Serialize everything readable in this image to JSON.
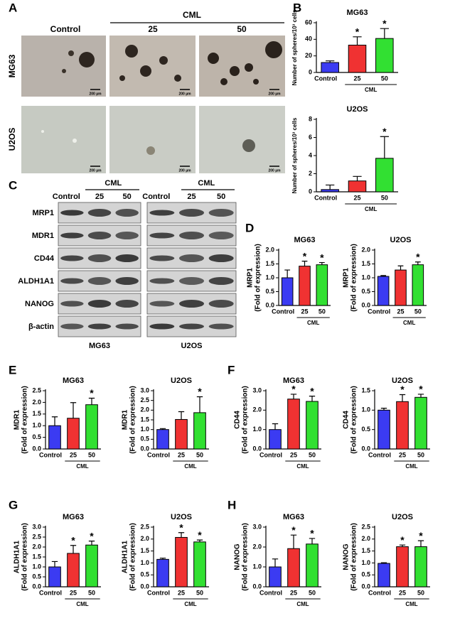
{
  "panel_labels": [
    "A",
    "B",
    "C",
    "D",
    "E",
    "F",
    "G",
    "H"
  ],
  "panel_a": {
    "group_label": "CML",
    "columns": [
      "Control",
      "25",
      "50"
    ],
    "rows": [
      "MG63",
      "U2OS"
    ],
    "scale_bar": "200 µm"
  },
  "panel_c": {
    "group_label": "CML",
    "columns": [
      "Control",
      "25",
      "50"
    ],
    "rows": [
      "MRP1",
      "MDR1",
      "CD44",
      "ALDH1A1",
      "NANOG",
      "β-actin"
    ],
    "cell_lines": [
      "MG63",
      "U2OS"
    ]
  },
  "chart_data": [
    {
      "type": "bar",
      "title": "MG63",
      "ylabel": "Number of spheres/10³ cells",
      "categories": [
        "Control",
        "25",
        "50"
      ],
      "group_label": "CML",
      "values": [
        12,
        33,
        41
      ],
      "errors": [
        2,
        10,
        12
      ],
      "significance": [
        null,
        "*",
        "*"
      ],
      "colors": [
        "#3b3bf2",
        "#f03232",
        "#32e032"
      ],
      "ylim": [
        0,
        60
      ],
      "yticks": [
        0,
        20,
        40,
        60
      ]
    },
    {
      "type": "bar",
      "title": "U2OS",
      "ylabel": "Number of spheres/10³ cells",
      "categories": [
        "Control",
        "25",
        "50"
      ],
      "group_label": "CML",
      "values": [
        0.25,
        1.2,
        3.7
      ],
      "errors": [
        0.5,
        0.5,
        2.4
      ],
      "significance": [
        null,
        null,
        "*"
      ],
      "colors": [
        "#3b3bf2",
        "#f03232",
        "#32e032"
      ],
      "ylim": [
        0,
        8
      ],
      "yticks": [
        0,
        2,
        4,
        6,
        8
      ]
    },
    {
      "type": "bar",
      "title": "MG63",
      "ylabel": "MRP1",
      "ylabel_2": "(Fold of expression)",
      "categories": [
        "Control",
        "25",
        "50"
      ],
      "group_label": "CML",
      "values": [
        1.0,
        1.42,
        1.47
      ],
      "errors": [
        0.28,
        0.18,
        0.08
      ],
      "significance": [
        null,
        "*",
        "*"
      ],
      "colors": [
        "#3b3bf2",
        "#f03232",
        "#32e032"
      ],
      "ylim": [
        0,
        2
      ],
      "yticks": [
        {
          "value": 0,
          "label": "0.0"
        },
        0.5,
        {
          "value": 1,
          "label": "1.0"
        },
        1.5,
        {
          "value": 2,
          "label": "2.0"
        }
      ]
    },
    {
      "type": "bar",
      "title": "U2OS",
      "ylabel": "MRP1",
      "ylabel_2": "(Fold of expression)",
      "categories": [
        "Control",
        "25",
        "50"
      ],
      "group_label": "CML",
      "values": [
        1.05,
        1.28,
        1.47
      ],
      "errors": [
        0.03,
        0.15,
        0.1
      ],
      "significance": [
        null,
        null,
        "*"
      ],
      "colors": [
        "#3b3bf2",
        "#f03232",
        "#32e032"
      ],
      "ylim": [
        0,
        2
      ],
      "yticks": [
        {
          "value": 0,
          "label": "0.0"
        },
        0.5,
        {
          "value": 1,
          "label": "1.0"
        },
        1.5,
        {
          "value": 2,
          "label": "2.0"
        }
      ]
    },
    {
      "type": "bar",
      "title": "MG63",
      "ylabel": "MDR1",
      "ylabel_2": "(Fold of expression)",
      "categories": [
        "Control",
        "25",
        "50"
      ],
      "group_label": "CML",
      "values": [
        1.0,
        1.32,
        1.9
      ],
      "errors": [
        0.38,
        0.67,
        0.28
      ],
      "significance": [
        null,
        null,
        "*"
      ],
      "colors": [
        "#3b3bf2",
        "#f03232",
        "#32e032"
      ],
      "ylim": [
        0,
        2.5
      ],
      "yticks": [
        {
          "value": 0,
          "label": "0.0"
        },
        0.5,
        {
          "value": 1,
          "label": "1.0"
        },
        1.5,
        {
          "value": 2,
          "label": "2.0"
        },
        2.5
      ]
    },
    {
      "type": "bar",
      "title": "U2OS",
      "ylabel": "MDR1",
      "ylabel_2": "(Fold of expression)",
      "categories": [
        "Control",
        "25",
        "50"
      ],
      "group_label": "CML",
      "values": [
        1.0,
        1.52,
        1.87
      ],
      "errors": [
        0.05,
        0.4,
        0.82
      ],
      "significance": [
        null,
        null,
        "*"
      ],
      "colors": [
        "#3b3bf2",
        "#f03232",
        "#32e032"
      ],
      "ylim": [
        0,
        3
      ],
      "yticks": [
        {
          "value": 0,
          "label": "0.0"
        },
        0.5,
        {
          "value": 1,
          "label": "1.0"
        },
        1.5,
        {
          "value": 2,
          "label": "2.0"
        },
        2.5,
        {
          "value": 3,
          "label": "3.0"
        }
      ]
    },
    {
      "type": "bar",
      "title": "MG63",
      "ylabel": "CD44",
      "ylabel_2": "(Fold of expression)",
      "categories": [
        "Control",
        "25",
        "50"
      ],
      "group_label": "CML",
      "values": [
        1.0,
        2.57,
        2.45
      ],
      "errors": [
        0.3,
        0.25,
        0.27
      ],
      "significance": [
        null,
        "*",
        "*"
      ],
      "colors": [
        "#3b3bf2",
        "#f03232",
        "#32e032"
      ],
      "ylim": [
        0,
        3
      ],
      "yticks": [
        {
          "value": 0,
          "label": "0.0"
        },
        {
          "value": 1,
          "label": "1.0"
        },
        {
          "value": 2,
          "label": "2.0"
        },
        {
          "value": 3,
          "label": "3.0"
        }
      ]
    },
    {
      "type": "bar",
      "title": "U2OS",
      "ylabel": "CD44",
      "ylabel_2": "(Fold of expression)",
      "categories": [
        "Control",
        "25",
        "50"
      ],
      "group_label": "CML",
      "values": [
        1.0,
        1.22,
        1.33
      ],
      "errors": [
        0.05,
        0.18,
        0.08
      ],
      "significance": [
        null,
        "*",
        "*"
      ],
      "colors": [
        "#3b3bf2",
        "#f03232",
        "#32e032"
      ],
      "ylim": [
        0,
        1.5
      ],
      "yticks": [
        {
          "value": 0,
          "label": "0.0"
        },
        0.5,
        {
          "value": 1,
          "label": "1.0"
        },
        1.5
      ]
    },
    {
      "type": "bar",
      "title": "MG63",
      "ylabel": "ALDH1A1",
      "ylabel_2": "(Fold of expression)",
      "categories": [
        "Control",
        "25",
        "50"
      ],
      "group_label": "CML",
      "values": [
        1.0,
        1.68,
        2.1
      ],
      "errors": [
        0.27,
        0.4,
        0.2
      ],
      "significance": [
        null,
        "*",
        "*"
      ],
      "colors": [
        "#3b3bf2",
        "#f03232",
        "#32e032"
      ],
      "ylim": [
        0,
        3
      ],
      "yticks": [
        {
          "value": 0,
          "label": "0.0"
        },
        0.5,
        {
          "value": 1,
          "label": "1.0"
        },
        1.5,
        {
          "value": 2,
          "label": "2.0"
        },
        2.5,
        {
          "value": 3,
          "label": "3.0"
        }
      ]
    },
    {
      "type": "bar",
      "title": "U2OS",
      "ylabel": "ALDH1A1",
      "ylabel_2": "(Fold of expression)",
      "categories": [
        "Control",
        "25",
        "50"
      ],
      "group_label": "CML",
      "values": [
        1.15,
        2.07,
        1.88
      ],
      "errors": [
        0.05,
        0.2,
        0.08
      ],
      "significance": [
        null,
        "*",
        "*"
      ],
      "colors": [
        "#3b3bf2",
        "#f03232",
        "#32e032"
      ],
      "ylim": [
        0,
        2.5
      ],
      "yticks": [
        {
          "value": 0,
          "label": "0.0"
        },
        0.5,
        {
          "value": 1,
          "label": "1.0"
        },
        1.5,
        {
          "value": 2,
          "label": "2.0"
        },
        2.5
      ]
    },
    {
      "type": "bar",
      "title": "MG63",
      "ylabel": "NANOG",
      "ylabel_2": "(Fold of expression)",
      "categories": [
        "Control",
        "25",
        "50"
      ],
      "group_label": "CML",
      "values": [
        1.0,
        1.92,
        2.15
      ],
      "errors": [
        0.4,
        0.68,
        0.28
      ],
      "significance": [
        null,
        "*",
        "*"
      ],
      "colors": [
        "#3b3bf2",
        "#f03232",
        "#32e032"
      ],
      "ylim": [
        0,
        3
      ],
      "yticks": [
        {
          "value": 0,
          "label": "0.0"
        },
        {
          "value": 1,
          "label": "1.0"
        },
        {
          "value": 2,
          "label": "2.0"
        },
        {
          "value": 3,
          "label": "3.0"
        }
      ]
    },
    {
      "type": "bar",
      "title": "U2OS",
      "ylabel": "NANOG",
      "ylabel_2": "(Fold of expression)",
      "categories": [
        "Control",
        "25",
        "50"
      ],
      "group_label": "CML",
      "values": [
        0.98,
        1.68,
        1.68
      ],
      "errors": [
        0.03,
        0.07,
        0.25
      ],
      "significance": [
        null,
        "*",
        "*"
      ],
      "colors": [
        "#3b3bf2",
        "#f03232",
        "#32e032"
      ],
      "ylim": [
        0,
        2.5
      ],
      "yticks": [
        {
          "value": 0,
          "label": "0.0"
        },
        0.5,
        {
          "value": 1,
          "label": "1.0"
        },
        1.5,
        {
          "value": 2,
          "label": "2.0"
        },
        2.5
      ]
    }
  ]
}
